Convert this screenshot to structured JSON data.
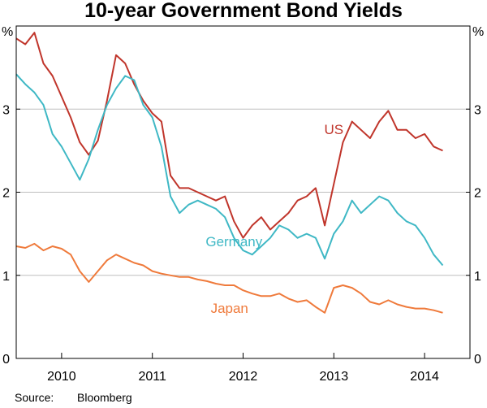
{
  "chart_data": {
    "type": "line",
    "title": "10-year Government Bond Yields",
    "ylabel_left": "%",
    "ylabel_right": "%",
    "ylim": [
      0,
      4
    ],
    "yticks": [
      "0",
      "1",
      "2",
      "3"
    ],
    "xlim": [
      2009.5,
      2014.5
    ],
    "xtick_labels": [
      "2010",
      "2011",
      "2012",
      "2013",
      "2014"
    ],
    "grid": true,
    "source_label": "Source:",
    "source_value": "Bloomberg",
    "series": [
      {
        "name": "US",
        "color": "#c0352b",
        "x": [
          2009.5,
          2009.6,
          2009.7,
          2009.8,
          2009.9,
          2010.0,
          2010.1,
          2010.2,
          2010.3,
          2010.4,
          2010.5,
          2010.6,
          2010.7,
          2010.8,
          2010.9,
          2011.0,
          2011.1,
          2011.2,
          2011.3,
          2011.4,
          2011.5,
          2011.6,
          2011.7,
          2011.8,
          2011.9,
          2012.0,
          2012.1,
          2012.2,
          2012.3,
          2012.4,
          2012.5,
          2012.6,
          2012.7,
          2012.8,
          2012.9,
          2013.0,
          2013.1,
          2013.2,
          2013.3,
          2013.4,
          2013.5,
          2013.6,
          2013.7,
          2013.8,
          2013.9,
          2014.0,
          2014.1,
          2014.2
        ],
        "values": [
          3.85,
          3.78,
          3.92,
          3.55,
          3.4,
          3.15,
          2.9,
          2.6,
          2.45,
          2.62,
          3.1,
          3.65,
          3.55,
          3.3,
          3.1,
          2.95,
          2.85,
          2.2,
          2.05,
          2.05,
          2.0,
          1.95,
          1.9,
          1.95,
          1.65,
          1.45,
          1.6,
          1.7,
          1.55,
          1.65,
          1.75,
          1.9,
          1.95,
          2.05,
          1.6,
          2.1,
          2.6,
          2.85,
          2.75,
          2.65,
          2.85,
          2.98,
          2.75,
          2.75,
          2.65,
          2.7,
          2.55,
          2.5
        ]
      },
      {
        "name": "Germany",
        "color": "#3fb8c5",
        "x": [
          2009.5,
          2009.6,
          2009.7,
          2009.8,
          2009.9,
          2010.0,
          2010.1,
          2010.2,
          2010.3,
          2010.4,
          2010.5,
          2010.6,
          2010.7,
          2010.8,
          2010.9,
          2011.0,
          2011.1,
          2011.2,
          2011.3,
          2011.4,
          2011.5,
          2011.6,
          2011.7,
          2011.8,
          2011.9,
          2012.0,
          2012.1,
          2012.2,
          2012.3,
          2012.4,
          2012.5,
          2012.6,
          2012.7,
          2012.8,
          2012.9,
          2013.0,
          2013.1,
          2013.2,
          2013.3,
          2013.4,
          2013.5,
          2013.6,
          2013.7,
          2013.8,
          2013.9,
          2014.0,
          2014.1,
          2014.2
        ],
        "values": [
          3.42,
          3.3,
          3.2,
          3.05,
          2.7,
          2.55,
          2.35,
          2.15,
          2.4,
          2.75,
          3.05,
          3.25,
          3.4,
          3.35,
          3.05,
          2.9,
          2.55,
          1.95,
          1.75,
          1.85,
          1.9,
          1.85,
          1.8,
          1.7,
          1.45,
          1.3,
          1.25,
          1.35,
          1.45,
          1.6,
          1.55,
          1.45,
          1.5,
          1.45,
          1.2,
          1.5,
          1.65,
          1.9,
          1.75,
          1.85,
          1.95,
          1.9,
          1.75,
          1.65,
          1.6,
          1.45,
          1.25,
          1.12
        ]
      },
      {
        "name": "Japan",
        "color": "#ef7a3b",
        "x": [
          2009.5,
          2009.6,
          2009.7,
          2009.8,
          2009.9,
          2010.0,
          2010.1,
          2010.2,
          2010.3,
          2010.4,
          2010.5,
          2010.6,
          2010.7,
          2010.8,
          2010.9,
          2011.0,
          2011.1,
          2011.2,
          2011.3,
          2011.4,
          2011.5,
          2011.6,
          2011.7,
          2011.8,
          2011.9,
          2012.0,
          2012.1,
          2012.2,
          2012.3,
          2012.4,
          2012.5,
          2012.6,
          2012.7,
          2012.8,
          2012.9,
          2013.0,
          2013.1,
          2013.2,
          2013.3,
          2013.4,
          2013.5,
          2013.6,
          2013.7,
          2013.8,
          2013.9,
          2014.0,
          2014.1,
          2014.2
        ],
        "values": [
          1.35,
          1.33,
          1.38,
          1.3,
          1.35,
          1.32,
          1.25,
          1.05,
          0.92,
          1.05,
          1.18,
          1.25,
          1.2,
          1.15,
          1.12,
          1.05,
          1.02,
          1.0,
          0.98,
          0.98,
          0.95,
          0.93,
          0.9,
          0.88,
          0.88,
          0.82,
          0.78,
          0.75,
          0.75,
          0.78,
          0.72,
          0.68,
          0.7,
          0.62,
          0.55,
          0.85,
          0.88,
          0.85,
          0.78,
          0.68,
          0.65,
          0.7,
          0.65,
          0.62,
          0.6,
          0.6,
          0.58,
          0.55
        ]
      }
    ]
  }
}
